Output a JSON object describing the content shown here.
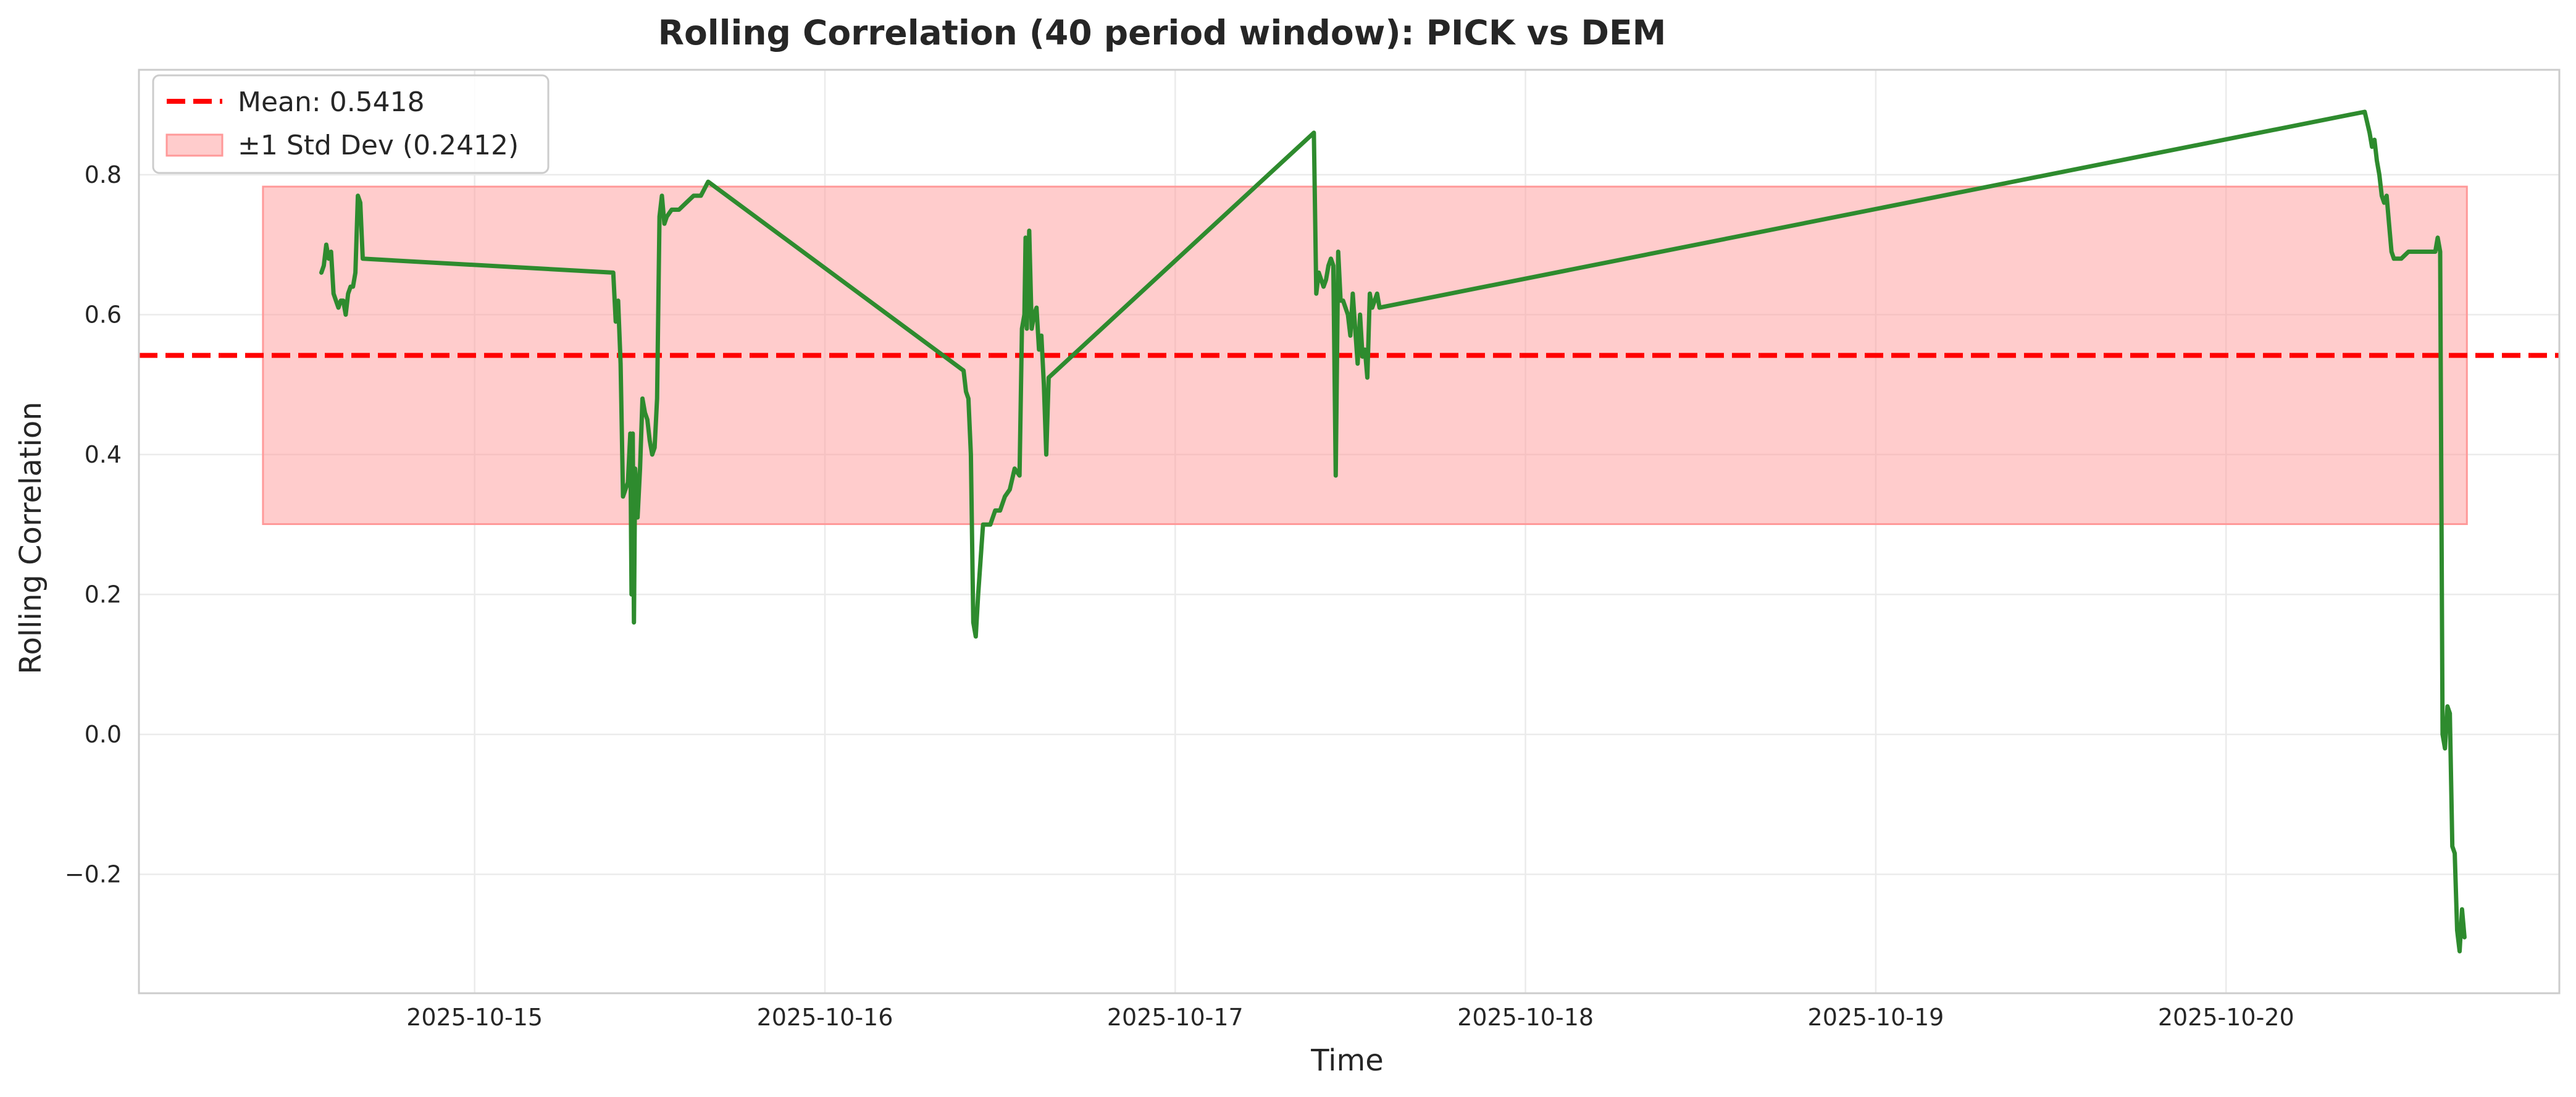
{
  "chart_data": {
    "type": "line",
    "title": "Rolling Correlation (40 period window): PICK vs DEM",
    "xlabel": "Time",
    "ylabel": "Rolling Correlation",
    "x_ticks": [
      "2025-10-15",
      "2025-10-16",
      "2025-10-17",
      "2025-10-18",
      "2025-10-19",
      "2025-10-20"
    ],
    "y_ticks": [
      -0.2,
      0.0,
      0.2,
      0.4,
      0.6,
      0.8
    ],
    "y_tick_labels": [
      "−0.2",
      "0.0",
      "0.2",
      "0.4",
      "0.6",
      "0.8"
    ],
    "xlim": [
      "2025-10-14T01:00",
      "2025-10-20T22:50"
    ],
    "ylim": [
      -0.37,
      0.95
    ],
    "grid": true,
    "legend_position": "top-left",
    "mean": {
      "label": "Mean: 0.5418",
      "value": 0.5418,
      "color": "#ff0000"
    },
    "std_band": {
      "label": "±1 Std Dev (0.2412)",
      "low": 0.3006,
      "high": 0.783,
      "x_start": "2025-10-14T09:30",
      "x_end": "2025-10-20T16:30",
      "color": "#ff9999"
    },
    "series": [
      {
        "color": "#2e8b2e",
        "points": [
          [
            "2025-10-14T13:30",
            0.66
          ],
          [
            "2025-10-14T13:40",
            0.67
          ],
          [
            "2025-10-14T13:50",
            0.7
          ],
          [
            "2025-10-14T14:00",
            0.68
          ],
          [
            "2025-10-14T14:10",
            0.69
          ],
          [
            "2025-10-14T14:20",
            0.63
          ],
          [
            "2025-10-14T14:30",
            0.62
          ],
          [
            "2025-10-14T14:40",
            0.61
          ],
          [
            "2025-10-14T14:50",
            0.62
          ],
          [
            "2025-10-14T15:00",
            0.62
          ],
          [
            "2025-10-14T15:10",
            0.6
          ],
          [
            "2025-10-14T15:20",
            0.63
          ],
          [
            "2025-10-14T15:30",
            0.64
          ],
          [
            "2025-10-14T15:40",
            0.64
          ],
          [
            "2025-10-14T15:50",
            0.66
          ],
          [
            "2025-10-14T16:00",
            0.77
          ],
          [
            "2025-10-14T16:10",
            0.76
          ],
          [
            "2025-10-14T16:20",
            0.68
          ],
          [
            "2025-10-15T09:30",
            0.66
          ],
          [
            "2025-10-15T09:40",
            0.59
          ],
          [
            "2025-10-15T09:50",
            0.62
          ],
          [
            "2025-10-15T10:00",
            0.53
          ],
          [
            "2025-10-15T10:10",
            0.34
          ],
          [
            "2025-10-15T10:20",
            0.35
          ],
          [
            "2025-10-15T10:30",
            0.36
          ],
          [
            "2025-10-15T10:40",
            0.43
          ],
          [
            "2025-10-15T10:45",
            0.2
          ],
          [
            "2025-10-15T10:50",
            0.43
          ],
          [
            "2025-10-15T10:55",
            0.16
          ],
          [
            "2025-10-15T11:00",
            0.38
          ],
          [
            "2025-10-15T11:10",
            0.31
          ],
          [
            "2025-10-15T11:20",
            0.38
          ],
          [
            "2025-10-15T11:30",
            0.48
          ],
          [
            "2025-10-15T11:40",
            0.46
          ],
          [
            "2025-10-15T11:50",
            0.45
          ],
          [
            "2025-10-15T12:00",
            0.42
          ],
          [
            "2025-10-15T12:10",
            0.4
          ],
          [
            "2025-10-15T12:20",
            0.41
          ],
          [
            "2025-10-15T12:30",
            0.48
          ],
          [
            "2025-10-15T12:40",
            0.74
          ],
          [
            "2025-10-15T12:50",
            0.77
          ],
          [
            "2025-10-15T13:00",
            0.73
          ],
          [
            "2025-10-15T13:10",
            0.74
          ],
          [
            "2025-10-15T13:30",
            0.75
          ],
          [
            "2025-10-15T14:00",
            0.75
          ],
          [
            "2025-10-15T14:30",
            0.76
          ],
          [
            "2025-10-15T15:00",
            0.77
          ],
          [
            "2025-10-15T15:30",
            0.77
          ],
          [
            "2025-10-15T16:00",
            0.79
          ],
          [
            "2025-10-16T09:30",
            0.52
          ],
          [
            "2025-10-16T09:40",
            0.49
          ],
          [
            "2025-10-16T09:50",
            0.48
          ],
          [
            "2025-10-16T10:00",
            0.4
          ],
          [
            "2025-10-16T10:10",
            0.16
          ],
          [
            "2025-10-16T10:20",
            0.14
          ],
          [
            "2025-10-16T10:30",
            0.2
          ],
          [
            "2025-10-16T10:50",
            0.3
          ],
          [
            "2025-10-16T11:20",
            0.3
          ],
          [
            "2025-10-16T11:40",
            0.32
          ],
          [
            "2025-10-16T12:00",
            0.32
          ],
          [
            "2025-10-16T12:20",
            0.34
          ],
          [
            "2025-10-16T12:40",
            0.35
          ],
          [
            "2025-10-16T13:00",
            0.38
          ],
          [
            "2025-10-16T13:20",
            0.37
          ],
          [
            "2025-10-16T13:30",
            0.58
          ],
          [
            "2025-10-16T13:40",
            0.6
          ],
          [
            "2025-10-16T13:45",
            0.71
          ],
          [
            "2025-10-16T13:50",
            0.58
          ],
          [
            "2025-10-16T14:00",
            0.72
          ],
          [
            "2025-10-16T14:10",
            0.58
          ],
          [
            "2025-10-16T14:20",
            0.6
          ],
          [
            "2025-10-16T14:30",
            0.61
          ],
          [
            "2025-10-16T14:40",
            0.55
          ],
          [
            "2025-10-16T14:50",
            0.57
          ],
          [
            "2025-10-16T15:00",
            0.5
          ],
          [
            "2025-10-16T15:10",
            0.4
          ],
          [
            "2025-10-16T15:20",
            0.51
          ],
          [
            "2025-10-17T09:30",
            0.86
          ],
          [
            "2025-10-17T09:40",
            0.63
          ],
          [
            "2025-10-17T09:50",
            0.66
          ],
          [
            "2025-10-17T10:00",
            0.65
          ],
          [
            "2025-10-17T10:10",
            0.64
          ],
          [
            "2025-10-17T10:20",
            0.65
          ],
          [
            "2025-10-17T10:30",
            0.67
          ],
          [
            "2025-10-17T10:40",
            0.68
          ],
          [
            "2025-10-17T10:50",
            0.67
          ],
          [
            "2025-10-17T11:00",
            0.37
          ],
          [
            "2025-10-17T11:10",
            0.69
          ],
          [
            "2025-10-17T11:20",
            0.62
          ],
          [
            "2025-10-17T11:30",
            0.62
          ],
          [
            "2025-10-17T11:40",
            0.61
          ],
          [
            "2025-10-17T11:50",
            0.6
          ],
          [
            "2025-10-17T12:00",
            0.57
          ],
          [
            "2025-10-17T12:10",
            0.63
          ],
          [
            "2025-10-17T12:20",
            0.58
          ],
          [
            "2025-10-17T12:30",
            0.53
          ],
          [
            "2025-10-17T12:40",
            0.6
          ],
          [
            "2025-10-17T12:50",
            0.54
          ],
          [
            "2025-10-17T13:00",
            0.55
          ],
          [
            "2025-10-17T13:10",
            0.51
          ],
          [
            "2025-10-17T13:20",
            0.63
          ],
          [
            "2025-10-17T13:30",
            0.61
          ],
          [
            "2025-10-17T13:40",
            0.62
          ],
          [
            "2025-10-17T13:50",
            0.63
          ],
          [
            "2025-10-17T14:00",
            0.61
          ],
          [
            "2025-10-20T09:30",
            0.89
          ],
          [
            "2025-10-20T09:50",
            0.86
          ],
          [
            "2025-10-20T10:00",
            0.84
          ],
          [
            "2025-10-20T10:10",
            0.85
          ],
          [
            "2025-10-20T10:20",
            0.82
          ],
          [
            "2025-10-20T10:30",
            0.8
          ],
          [
            "2025-10-20T10:40",
            0.77
          ],
          [
            "2025-10-20T10:50",
            0.76
          ],
          [
            "2025-10-20T11:00",
            0.77
          ],
          [
            "2025-10-20T11:10",
            0.73
          ],
          [
            "2025-10-20T11:20",
            0.69
          ],
          [
            "2025-10-20T11:30",
            0.68
          ],
          [
            "2025-10-20T12:00",
            0.68
          ],
          [
            "2025-10-20T12:30",
            0.69
          ],
          [
            "2025-10-20T13:00",
            0.69
          ],
          [
            "2025-10-20T13:30",
            0.69
          ],
          [
            "2025-10-20T14:00",
            0.69
          ],
          [
            "2025-10-20T14:20",
            0.69
          ],
          [
            "2025-10-20T14:30",
            0.71
          ],
          [
            "2025-10-20T14:40",
            0.69
          ],
          [
            "2025-10-20T14:50",
            0.0
          ],
          [
            "2025-10-20T15:00",
            -0.02
          ],
          [
            "2025-10-20T15:10",
            0.04
          ],
          [
            "2025-10-20T15:20",
            0.03
          ],
          [
            "2025-10-20T15:30",
            -0.16
          ],
          [
            "2025-10-20T15:40",
            -0.17
          ],
          [
            "2025-10-20T15:50",
            -0.28
          ],
          [
            "2025-10-20T16:00",
            -0.31
          ],
          [
            "2025-10-20T16:10",
            -0.25
          ],
          [
            "2025-10-20T16:20",
            -0.29
          ]
        ]
      }
    ]
  }
}
